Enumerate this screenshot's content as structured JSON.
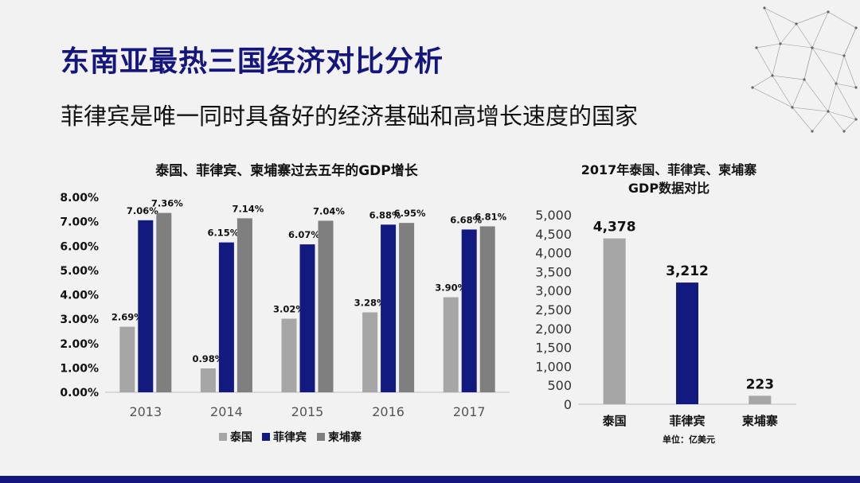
{
  "slide": {
    "title": "东南亚最热三国经济对比分析",
    "subtitle": "菲律宾是唯一同时具备好的经济基础和高增长速度的国家"
  },
  "colors": {
    "thailand": "#a6a6a6",
    "philippines": "#121a80",
    "cambodia": "#7f7f7f",
    "title": "#14157d"
  },
  "chart_data": [
    {
      "type": "bar",
      "title": "泰国、菲律宾、柬埔寨过去五年的GDP增长",
      "categories": [
        "2013",
        "2014",
        "2015",
        "2016",
        "2017"
      ],
      "series": [
        {
          "name": "泰国",
          "values": [
            2.69,
            0.98,
            3.02,
            3.28,
            3.9
          ],
          "labels": [
            "2.69%",
            "0.98%",
            "3.02%",
            "3.28%",
            "3.90%"
          ]
        },
        {
          "name": "菲律宾",
          "values": [
            7.06,
            6.15,
            6.07,
            6.88,
            6.68
          ],
          "labels": [
            "7.06%",
            "6.15%",
            "6.07%",
            "6.88%",
            "6.68%"
          ]
        },
        {
          "name": "柬埔寨",
          "values": [
            7.36,
            7.14,
            7.04,
            6.95,
            6.81
          ],
          "labels": [
            "7.36%",
            "7.14%",
            "7.04%",
            "6.95%",
            "6.81%"
          ]
        }
      ],
      "ylim": [
        0,
        8
      ],
      "yticks": [
        "0.00%",
        "1.00%",
        "2.00%",
        "3.00%",
        "4.00%",
        "5.00%",
        "6.00%",
        "7.00%",
        "8.00%"
      ],
      "grid": false,
      "legend_position": "bottom"
    },
    {
      "type": "bar",
      "title": "2017年泰国、菲律宾、柬埔寨 GDP数据对比",
      "title_lines": [
        "2017年泰国、菲律宾、柬埔寨",
        "GDP数据对比"
      ],
      "categories": [
        "泰国",
        "菲律宾",
        "柬埔寨"
      ],
      "values": [
        4378,
        3212,
        223
      ],
      "labels": [
        "4,378",
        "3,212",
        "223"
      ],
      "ylim": [
        0,
        5000
      ],
      "yticks": [
        "0",
        "500",
        "1,000",
        "1,500",
        "2,000",
        "2,500",
        "3,000",
        "3,500",
        "4,000",
        "4,500",
        "5,000"
      ],
      "unit_note": "单位：亿美元",
      "grid": false
    }
  ]
}
